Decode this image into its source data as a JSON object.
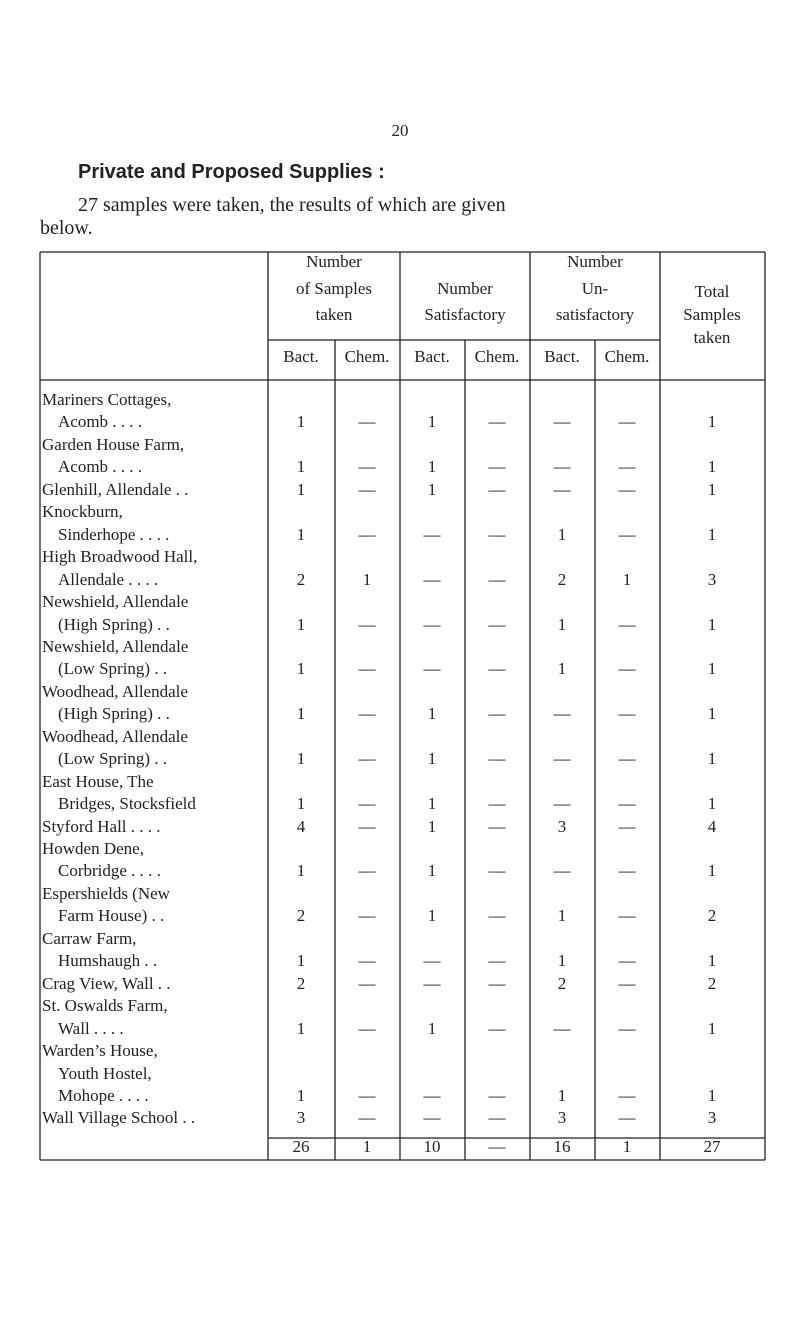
{
  "page_number": "20",
  "heading": "Private and Proposed Supplies :",
  "paragraph": [
    "27 samples were taken, the results of which are given",
    "below."
  ],
  "table": {
    "groups": [
      [
        "Number",
        "of Samples",
        "taken"
      ],
      [
        "Number",
        "Satisfactory"
      ],
      [
        "Number",
        "Un-",
        "satisfactory"
      ],
      [
        "Total",
        "Samples",
        "taken"
      ]
    ],
    "subheaders": [
      "Bact.",
      "Chem.",
      "Bact.",
      "Chem.",
      "Bact.",
      "Chem."
    ],
    "rows": [
      {
        "name": [
          "Mariners Cottages,",
          "Acomb . . . ."
        ],
        "values": [
          1,
          "—",
          1,
          "—",
          "—",
          "—",
          1
        ]
      },
      {
        "name": [
          "Garden House Farm,",
          "Acomb . . . ."
        ],
        "values": [
          1,
          "—",
          1,
          "—",
          "—",
          "—",
          1
        ]
      },
      {
        "name": [
          "Glenhill, Allendale . ."
        ],
        "values": [
          1,
          "—",
          1,
          "—",
          "—",
          "—",
          1
        ]
      },
      {
        "name": [
          "Knockburn,",
          "Sinderhope . . . ."
        ],
        "values": [
          1,
          "—",
          "—",
          "—",
          1,
          "—",
          1
        ]
      },
      {
        "name": [
          "High Broadwood Hall,",
          "Allendale . . . ."
        ],
        "values": [
          2,
          1,
          "—",
          "—",
          2,
          1,
          3
        ]
      },
      {
        "name": [
          "Newshield, Allendale",
          "(High Spring) . ."
        ],
        "values": [
          1,
          "—",
          "—",
          "—",
          1,
          "—",
          1
        ]
      },
      {
        "name": [
          "Newshield, Allendale",
          "(Low Spring) . ."
        ],
        "values": [
          1,
          "—",
          "—",
          "—",
          1,
          "—",
          1
        ]
      },
      {
        "name": [
          "Woodhead, Allendale",
          "(High Spring) . ."
        ],
        "values": [
          1,
          "—",
          1,
          "—",
          "—",
          "—",
          1
        ]
      },
      {
        "name": [
          "Woodhead, Allendale",
          "(Low Spring) . ."
        ],
        "values": [
          1,
          "—",
          1,
          "—",
          "—",
          "—",
          1
        ]
      },
      {
        "name": [
          "East House, The",
          "Bridges, Stocksfield"
        ],
        "values": [
          1,
          "—",
          1,
          "—",
          "—",
          "—",
          1
        ]
      },
      {
        "name": [
          "Styford Hall . . . ."
        ],
        "values": [
          4,
          "—",
          1,
          "—",
          3,
          "—",
          4
        ]
      },
      {
        "name": [
          "Howden Dene,",
          "Corbridge . . . ."
        ],
        "values": [
          1,
          "—",
          1,
          "—",
          "—",
          "—",
          1
        ]
      },
      {
        "name": [
          "Espershields (New",
          "Farm House) . ."
        ],
        "values": [
          2,
          "—",
          1,
          "—",
          1,
          "—",
          2
        ]
      },
      {
        "name": [
          "Carraw Farm,",
          "Humshaugh . ."
        ],
        "values": [
          1,
          "—",
          "—",
          "—",
          1,
          "—",
          1
        ]
      },
      {
        "name": [
          "Crag View, Wall . ."
        ],
        "values": [
          2,
          "—",
          "—",
          "—",
          2,
          "—",
          2
        ]
      },
      {
        "name": [
          "St. Oswalds Farm,",
          "Wall . . . ."
        ],
        "values": [
          1,
          "—",
          1,
          "—",
          "—",
          "—",
          1
        ]
      },
      {
        "name": [
          "Warden’s House,",
          "Youth Hostel,",
          "Mohope . . . ."
        ],
        "values": [
          1,
          "—",
          "—",
          "—",
          1,
          "—",
          1
        ]
      },
      {
        "name": [
          "Wall Village School . ."
        ],
        "values": [
          3,
          "—",
          "—",
          "—",
          3,
          "—",
          3
        ]
      }
    ],
    "totals": [
      26,
      1,
      10,
      "—",
      16,
      1,
      27
    ]
  }
}
